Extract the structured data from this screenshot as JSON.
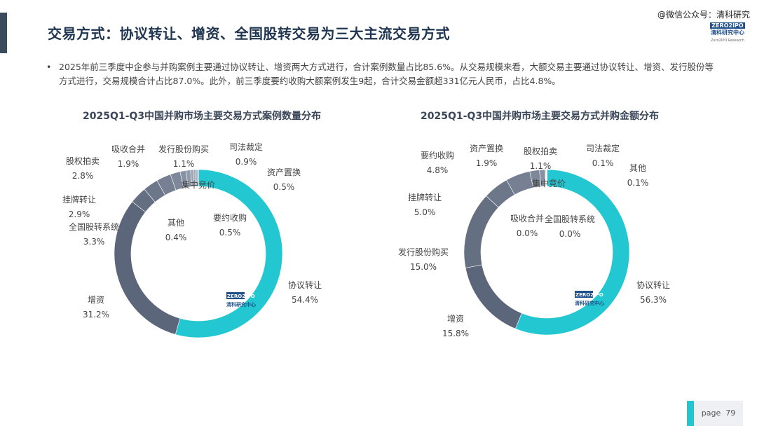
{
  "header": {
    "title": "交易方式：协议转让、增资、全国股转交易为三大主流交易方式",
    "watermark": "@微信公众号：清科研究",
    "logo_top": "ZERO2IPO",
    "logo_sub": "清科研究中心",
    "logo_en": "Zero2IPO Research"
  },
  "bullet": {
    "dot": "•",
    "text": "2025年前三季度中企参与并购案例主要通过协议转让、增资两大方式进行，合计案例数量占比85.6%。从交易规模来看，大额交易主要通过协议转让、增资、发行股份等方式进行，交易规模合计占比87.0%。此外，前三季度要约收购大额案例发生9起，合计交易金额超331亿元人民币，占比4.8%。"
  },
  "footer": {
    "page_label": "page",
    "page_number": "79"
  },
  "colors": {
    "cyan": "#22c7d1",
    "dark": "#5b667a",
    "light": "#b4bccb"
  },
  "chart_data": [
    {
      "type": "pie",
      "donut": true,
      "title": "2025Q1-Q3中国并购市场主要交易方式案例数量分布",
      "unit": "%",
      "slices": [
        {
          "name": "协议转让",
          "value": 54.4,
          "label": "54.4%"
        },
        {
          "name": "增资",
          "value": 31.2,
          "label": "31.2%"
        },
        {
          "name": "全国股转系统",
          "value": 3.3,
          "label": "3.3%"
        },
        {
          "name": "挂牌转让",
          "value": 2.9,
          "label": "2.9%"
        },
        {
          "name": "股权拍卖",
          "value": 2.8,
          "label": "2.8%"
        },
        {
          "name": "吸收合并",
          "value": 1.9,
          "label": "1.9%"
        },
        {
          "name": "发行股份购买",
          "value": 1.1,
          "label": "1.1%"
        },
        {
          "name": "司法裁定",
          "value": 0.9,
          "label": "0.9%"
        },
        {
          "name": "资产置换",
          "value": 0.5,
          "label": "0.5%"
        },
        {
          "name": "要约收购",
          "value": 0.5,
          "label": "0.5%"
        },
        {
          "name": "其他",
          "value": 0.4,
          "label": "0.4%"
        },
        {
          "name": "集中竞价",
          "value": 0.1,
          "label": ""
        }
      ]
    },
    {
      "type": "pie",
      "donut": true,
      "title": "2025Q1-Q3中国并购市场主要交易方式并购金额分布",
      "unit": "%",
      "slices": [
        {
          "name": "协议转让",
          "value": 56.3,
          "label": "56.3%"
        },
        {
          "name": "增资",
          "value": 15.8,
          "label": "15.8%"
        },
        {
          "name": "发行股份购买",
          "value": 15.0,
          "label": "15.0%"
        },
        {
          "name": "挂牌转让",
          "value": 5.0,
          "label": "5.0%"
        },
        {
          "name": "要约收购",
          "value": 4.8,
          "label": "4.8%"
        },
        {
          "name": "资产置换",
          "value": 1.9,
          "label": "1.9%"
        },
        {
          "name": "股权拍卖",
          "value": 1.1,
          "label": "1.1%"
        },
        {
          "name": "司法裁定",
          "value": 0.1,
          "label": "0.1%"
        },
        {
          "name": "其他",
          "value": 0.1,
          "label": "0.1%"
        },
        {
          "name": "吸收合并",
          "value": 0.0,
          "label": "0.0%"
        },
        {
          "name": "全国股转系统",
          "value": 0.0,
          "label": "0.0%"
        },
        {
          "name": "集中竞价",
          "value": 0.1,
          "label": ""
        }
      ]
    }
  ]
}
